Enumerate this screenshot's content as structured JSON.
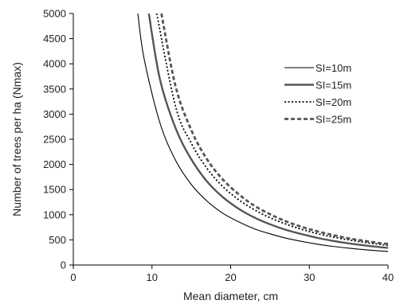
{
  "chart_data": {
    "type": "line",
    "title": "",
    "xlabel": "Mean diameter, cm",
    "ylabel": "Number of trees per ha (Nmax)",
    "xlim": [
      0,
      40
    ],
    "ylim": [
      0,
      5000
    ],
    "xticks": [
      0,
      10,
      20,
      30,
      40
    ],
    "yticks": [
      0,
      500,
      1000,
      1500,
      2000,
      2500,
      3000,
      3500,
      4000,
      4500,
      5000
    ],
    "grid": false,
    "legend_position": "right",
    "series": [
      {
        "name": "SI=10m",
        "style": "thin-solid",
        "color": "#000000",
        "x": [
          8.2,
          9,
          11,
          13,
          15,
          17,
          19,
          21,
          23,
          25,
          27,
          29,
          31,
          33,
          35,
          37,
          39,
          40
        ],
        "y": [
          5000,
          4100,
          2830,
          2080,
          1600,
          1270,
          1030,
          860,
          720,
          620,
          535,
          470,
          415,
          370,
          335,
          305,
          280,
          270
        ]
      },
      {
        "name": "SI=15m",
        "style": "thick-solid",
        "color": "#555555",
        "x": [
          9.6,
          11,
          13,
          15,
          17,
          19,
          21,
          23,
          25,
          27,
          29,
          31,
          33,
          35,
          37,
          39,
          40
        ],
        "y": [
          5000,
          3700,
          2720,
          2100,
          1660,
          1350,
          1120,
          945,
          810,
          700,
          615,
          540,
          480,
          430,
          390,
          355,
          340
        ]
      },
      {
        "name": "SI=20m",
        "style": "dotted",
        "color": "#000000",
        "x": [
          10.6,
          13,
          15,
          17,
          19,
          21,
          23,
          25,
          27,
          29,
          31,
          33,
          35,
          37,
          39,
          40
        ],
        "y": [
          5000,
          3150,
          2420,
          1920,
          1560,
          1300,
          1100,
          940,
          815,
          710,
          625,
          555,
          500,
          450,
          410,
          390
        ]
      },
      {
        "name": "SI=25m",
        "style": "dashed",
        "color": "#555555",
        "x": [
          11.2,
          13,
          15,
          17,
          19,
          21,
          23,
          25,
          27,
          29,
          31,
          33,
          35,
          37,
          39,
          40
        ],
        "y": [
          5000,
          3550,
          2680,
          2100,
          1700,
          1410,
          1180,
          1010,
          870,
          760,
          670,
          595,
          530,
          480,
          435,
          420
        ]
      }
    ]
  }
}
